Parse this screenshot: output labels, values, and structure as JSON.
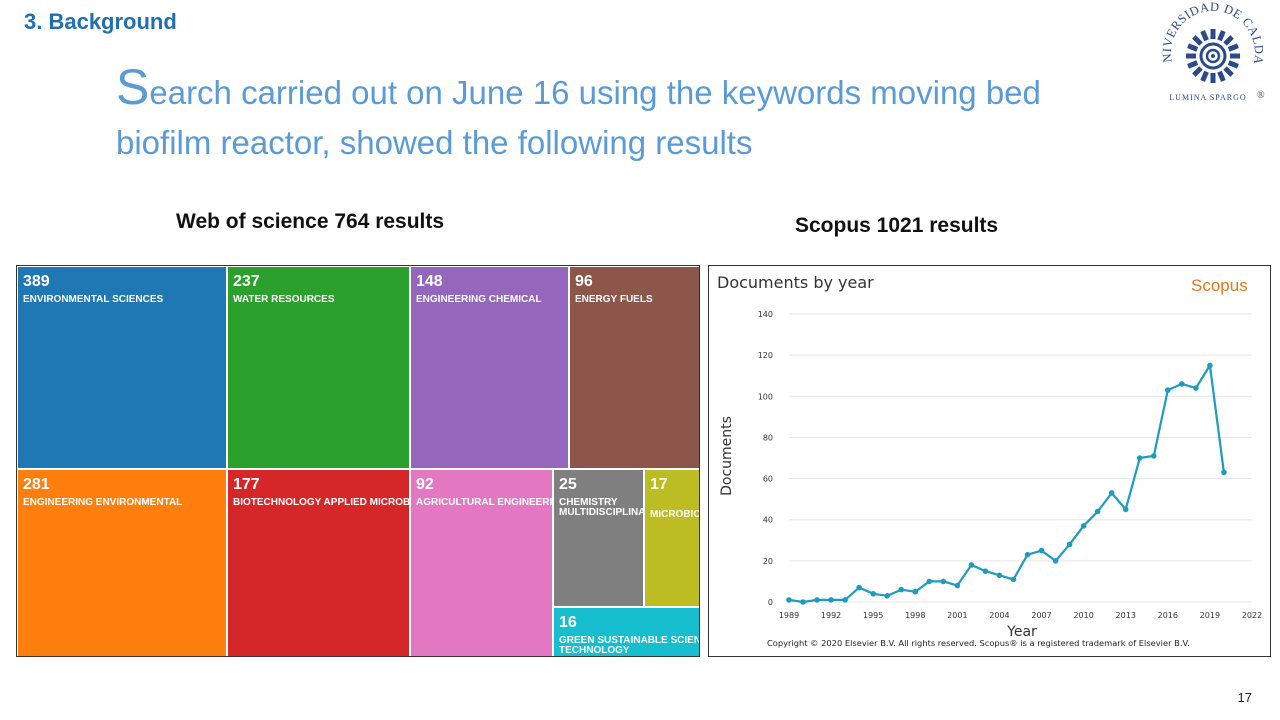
{
  "slide": {
    "section_title": "3. Background",
    "headline_first_letter": "S",
    "headline_rest": "earch carried out on June 16 using the keywords moving bed biofilm reactor, showed the following results",
    "wos_label": "Web of science 764 results",
    "scopus_label": "Scopus 1021 results",
    "page_number": "17"
  },
  "logo": {
    "arc_text": "UNIVERSIDAD DE CALDAS",
    "motto": "LUMINA SPARGO",
    "mark": "®"
  },
  "treemap": {
    "tiles": [
      {
        "value": "389",
        "label": "ENVIRONMENTAL SCIENCES",
        "color": "#1f77b4"
      },
      {
        "value": "237",
        "label": "WATER RESOURCES",
        "color": "#2ca02c"
      },
      {
        "value": "148",
        "label": "ENGINEERING CHEMICAL",
        "color": "#9467bd"
      },
      {
        "value": "96",
        "label": "ENERGY FUELS",
        "color": "#8c564b"
      },
      {
        "value": "281",
        "label": "ENGINEERING ENVIRONMENTAL",
        "color": "#ff7f0e"
      },
      {
        "value": "177",
        "label": "BIOTECHNOLOGY APPLIED MICROBIOLOGY",
        "color": "#d62728"
      },
      {
        "value": "92",
        "label": "AGRICULTURAL ENGINEERING",
        "color": "#e377c2"
      },
      {
        "value": "25",
        "label": "CHEMISTRY MULTIDISCIPLINARY",
        "color": "#7f7f7f"
      },
      {
        "value": "17",
        "label": "MICROBIOLOGY",
        "color": "#bcbd22"
      },
      {
        "value": "16",
        "label": "GREEN SUSTAINABLE SCIENCE TECHNOLOGY",
        "color": "#17becf"
      }
    ]
  },
  "chart_data": {
    "type": "line",
    "title": "Documents by year",
    "brand": "Scopus",
    "xlabel": "Year",
    "ylabel": "Documents",
    "xlim": [
      1989,
      2022
    ],
    "ylim": [
      0,
      140
    ],
    "xticks": [
      1989,
      1992,
      1995,
      1998,
      2001,
      2004,
      2007,
      2010,
      2013,
      2016,
      2019,
      2022
    ],
    "yticks": [
      0,
      20,
      40,
      60,
      80,
      100,
      120,
      140
    ],
    "grid": true,
    "x": [
      1989,
      1990,
      1991,
      1992,
      1993,
      1994,
      1995,
      1996,
      1997,
      1998,
      1999,
      2000,
      2001,
      2002,
      2003,
      2004,
      2005,
      2006,
      2007,
      2008,
      2009,
      2010,
      2011,
      2012,
      2013,
      2014,
      2015,
      2016,
      2017,
      2018,
      2019,
      2020
    ],
    "y": [
      1,
      0,
      1,
      1,
      1,
      7,
      4,
      3,
      6,
      5,
      10,
      10,
      8,
      18,
      15,
      13,
      11,
      23,
      25,
      20,
      28,
      37,
      44,
      53,
      45,
      70,
      71,
      103,
      106,
      104,
      115,
      63
    ],
    "copyright": "Copyright © 2020 Elsevier B.V. All rights reserved. Scopus® is a registered trademark of Elsevier B.V.",
    "colors": {
      "line": "#1f9bbd",
      "brand": "#e07a1f",
      "grid": "#e6e6e6"
    }
  }
}
